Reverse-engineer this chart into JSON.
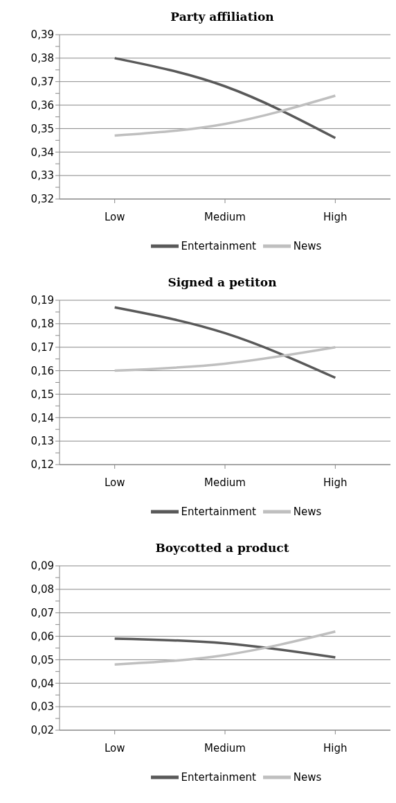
{
  "chart_data": [
    {
      "type": "line",
      "title": "Party affiliation",
      "categories": [
        "Low",
        "Medium",
        "High"
      ],
      "series": [
        {
          "name": "Entertainment",
          "color": "#595959",
          "values": [
            0.38,
            0.368,
            0.346
          ]
        },
        {
          "name": "News",
          "color": "#bfbfbf",
          "values": [
            0.347,
            0.352,
            0.364
          ]
        }
      ],
      "ylim": [
        0.32,
        0.39
      ],
      "yticks": [
        {
          "value": 0.32,
          "label": "0,32"
        },
        {
          "value": 0.325,
          "label": null
        },
        {
          "value": 0.33,
          "label": "0,33"
        },
        {
          "value": 0.335,
          "label": null
        },
        {
          "value": 0.34,
          "label": "0,34"
        },
        {
          "value": 0.345,
          "label": null
        },
        {
          "value": 0.35,
          "label": "0,35"
        },
        {
          "value": 0.355,
          "label": null
        },
        {
          "value": 0.36,
          "label": "0,36"
        },
        {
          "value": 0.365,
          "label": null
        },
        {
          "value": 0.37,
          "label": "0,37"
        },
        {
          "value": 0.375,
          "label": null
        },
        {
          "value": 0.38,
          "label": "0,38"
        },
        {
          "value": 0.385,
          "label": null
        },
        {
          "value": 0.39,
          "label": "0,39"
        }
      ],
      "grid": "y",
      "legend": "bottom",
      "marker": "none",
      "line_style": "solid"
    },
    {
      "type": "line",
      "title": "Signed a petiton",
      "categories": [
        "Low",
        "Medium",
        "High"
      ],
      "series": [
        {
          "name": "Entertainment",
          "color": "#595959",
          "values": [
            0.187,
            0.176,
            0.157
          ]
        },
        {
          "name": "News",
          "color": "#bfbfbf",
          "values": [
            0.16,
            0.163,
            0.17
          ]
        }
      ],
      "ylim": [
        0.12,
        0.19
      ],
      "yticks": [
        {
          "value": 0.12,
          "label": "0,12"
        },
        {
          "value": 0.125,
          "label": null
        },
        {
          "value": 0.13,
          "label": "0,13"
        },
        {
          "value": 0.135,
          "label": null
        },
        {
          "value": 0.14,
          "label": "0,14"
        },
        {
          "value": 0.145,
          "label": null
        },
        {
          "value": 0.15,
          "label": "0,15"
        },
        {
          "value": 0.155,
          "label": null
        },
        {
          "value": 0.16,
          "label": "0,16"
        },
        {
          "value": 0.165,
          "label": null
        },
        {
          "value": 0.17,
          "label": "0,17"
        },
        {
          "value": 0.175,
          "label": null
        },
        {
          "value": 0.18,
          "label": "0,18"
        },
        {
          "value": 0.185,
          "label": null
        },
        {
          "value": 0.19,
          "label": "0,19"
        }
      ],
      "grid": "y",
      "legend": "bottom",
      "marker": "none",
      "line_style": "solid"
    },
    {
      "type": "line",
      "title": "Boycotted a product",
      "categories": [
        "Low",
        "Medium",
        "High"
      ],
      "series": [
        {
          "name": "Entertainment",
          "color": "#595959",
          "values": [
            0.059,
            0.057,
            0.051
          ]
        },
        {
          "name": "News",
          "color": "#bfbfbf",
          "values": [
            0.048,
            0.052,
            0.062
          ]
        }
      ],
      "ylim": [
        0.02,
        0.09
      ],
      "yticks": [
        {
          "value": 0.02,
          "label": "0,02"
        },
        {
          "value": 0.025,
          "label": null
        },
        {
          "value": 0.03,
          "label": "0,03"
        },
        {
          "value": 0.035,
          "label": null
        },
        {
          "value": 0.04,
          "label": "0,04"
        },
        {
          "value": 0.045,
          "label": null
        },
        {
          "value": 0.05,
          "label": "0,05"
        },
        {
          "value": 0.055,
          "label": null
        },
        {
          "value": 0.06,
          "label": "0,06"
        },
        {
          "value": 0.065,
          "label": null
        },
        {
          "value": 0.07,
          "label": "0,07"
        },
        {
          "value": 0.075,
          "label": null
        },
        {
          "value": 0.08,
          "label": "0,08"
        },
        {
          "value": 0.085,
          "label": null
        },
        {
          "value": 0.09,
          "label": "0,09"
        }
      ],
      "grid": "y",
      "legend": "bottom",
      "marker": "none",
      "line_style": "solid"
    }
  ]
}
